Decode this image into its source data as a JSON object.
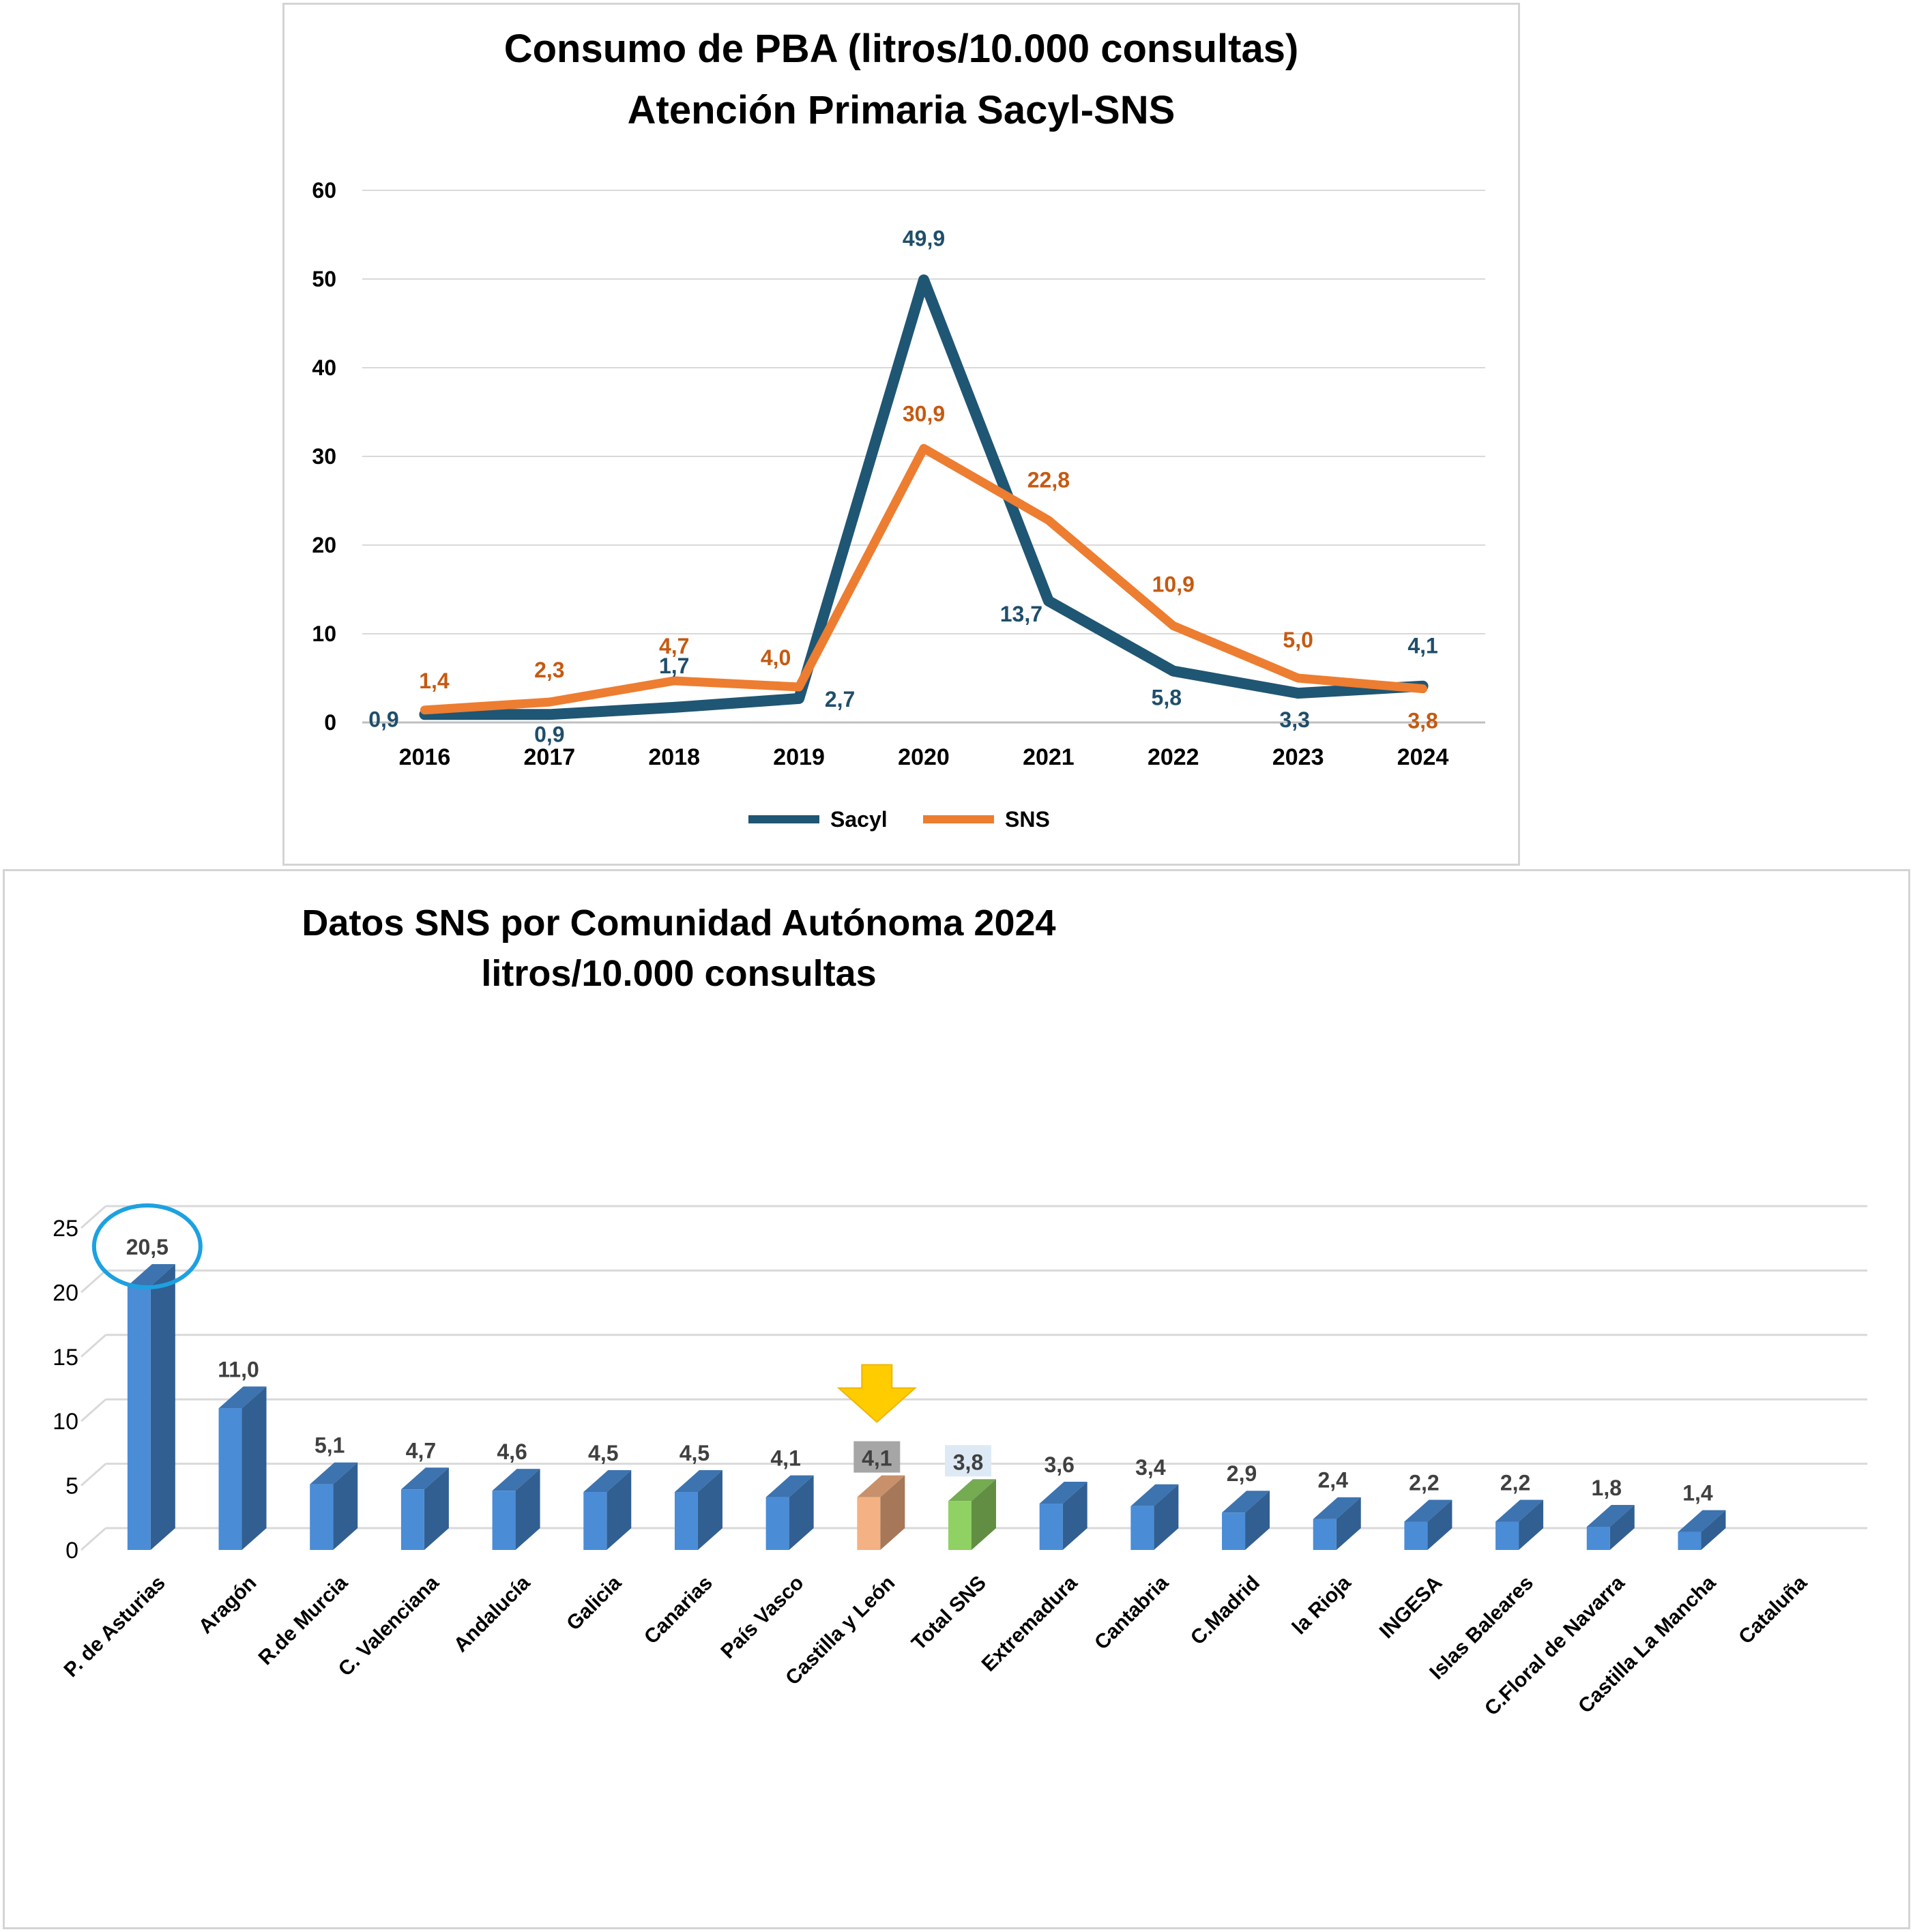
{
  "chart_data": [
    {
      "type": "line",
      "title": "Consumo de PBA  (litros/10.000 consultas)",
      "subtitle": "Atención Primaria Sacyl-SNS",
      "x": [
        "2016",
        "2017",
        "2018",
        "2019",
        "2020",
        "2021",
        "2022",
        "2023",
        "2024"
      ],
      "series": [
        {
          "name": "Sacyl",
          "values": [
            0.9,
            0.9,
            1.7,
            2.7,
            49.9,
            13.7,
            5.8,
            3.3,
            4.1
          ],
          "labels": [
            "0,9",
            "0,9",
            "1,7",
            "2,7",
            "49,9",
            "13,7",
            "5,8",
            "3,3",
            "4,1"
          ],
          "color": "#1F5673"
        },
        {
          "name": "SNS",
          "values": [
            1.4,
            2.3,
            4.7,
            4.0,
            30.9,
            22.8,
            10.9,
            5.0,
            3.8
          ],
          "labels": [
            "1,4",
            "2,3",
            "4,7",
            "4,0",
            "30,9",
            "22,8",
            "10,9",
            "5,0",
            "3,8"
          ],
          "color": "#ED7D31"
        }
      ],
      "ylim": [
        0,
        60
      ],
      "yticks": [
        "0",
        "10",
        "20",
        "30",
        "40",
        "50",
        "60"
      ],
      "grid": true,
      "legend": "bottom"
    },
    {
      "type": "bar",
      "title": "Datos SNS por Comunidad Autónoma 2024",
      "subtitle": "litros/10.000  consultas",
      "categories": [
        "P. de Asturias",
        "Aragón",
        "R.de Murcia",
        "C. Valenciana",
        "Andalucía",
        "Galicia",
        "Canarias",
        "País Vasco",
        "Castilla y León",
        "Total SNS",
        "Extremadura",
        "Cantabria",
        "C.Madrid",
        "la Rioja",
        "INGESA",
        "Islas Baleares",
        "C.Floral de Navarra",
        "Castilla La Mancha",
        "Cataluña"
      ],
      "values": [
        20.5,
        11.0,
        5.1,
        4.7,
        4.6,
        4.5,
        4.5,
        4.1,
        4.1,
        3.8,
        3.6,
        3.4,
        2.9,
        2.4,
        2.2,
        2.2,
        1.8,
        1.4,
        null
      ],
      "labels": [
        "20,5",
        "11,0",
        "5,1",
        "4,7",
        "4,6",
        "4,5",
        "4,5",
        "4,1",
        "4,1",
        "3,8",
        "3,6",
        "3,4",
        "2,9",
        "2,4",
        "2,2",
        "2,2",
        "1,8",
        "1,4",
        ""
      ],
      "ylim": [
        0,
        25
      ],
      "yticks": [
        "0",
        "5",
        "10",
        "15",
        "20",
        "25"
      ],
      "grid": true,
      "bar_color": "#4A8CD6",
      "highlight": {
        "Castilla y León": "#F4B183",
        "Total SNS": "#8FD163"
      },
      "circled": "P. de Asturias",
      "arrow_marker": "Castilla y León"
    }
  ]
}
